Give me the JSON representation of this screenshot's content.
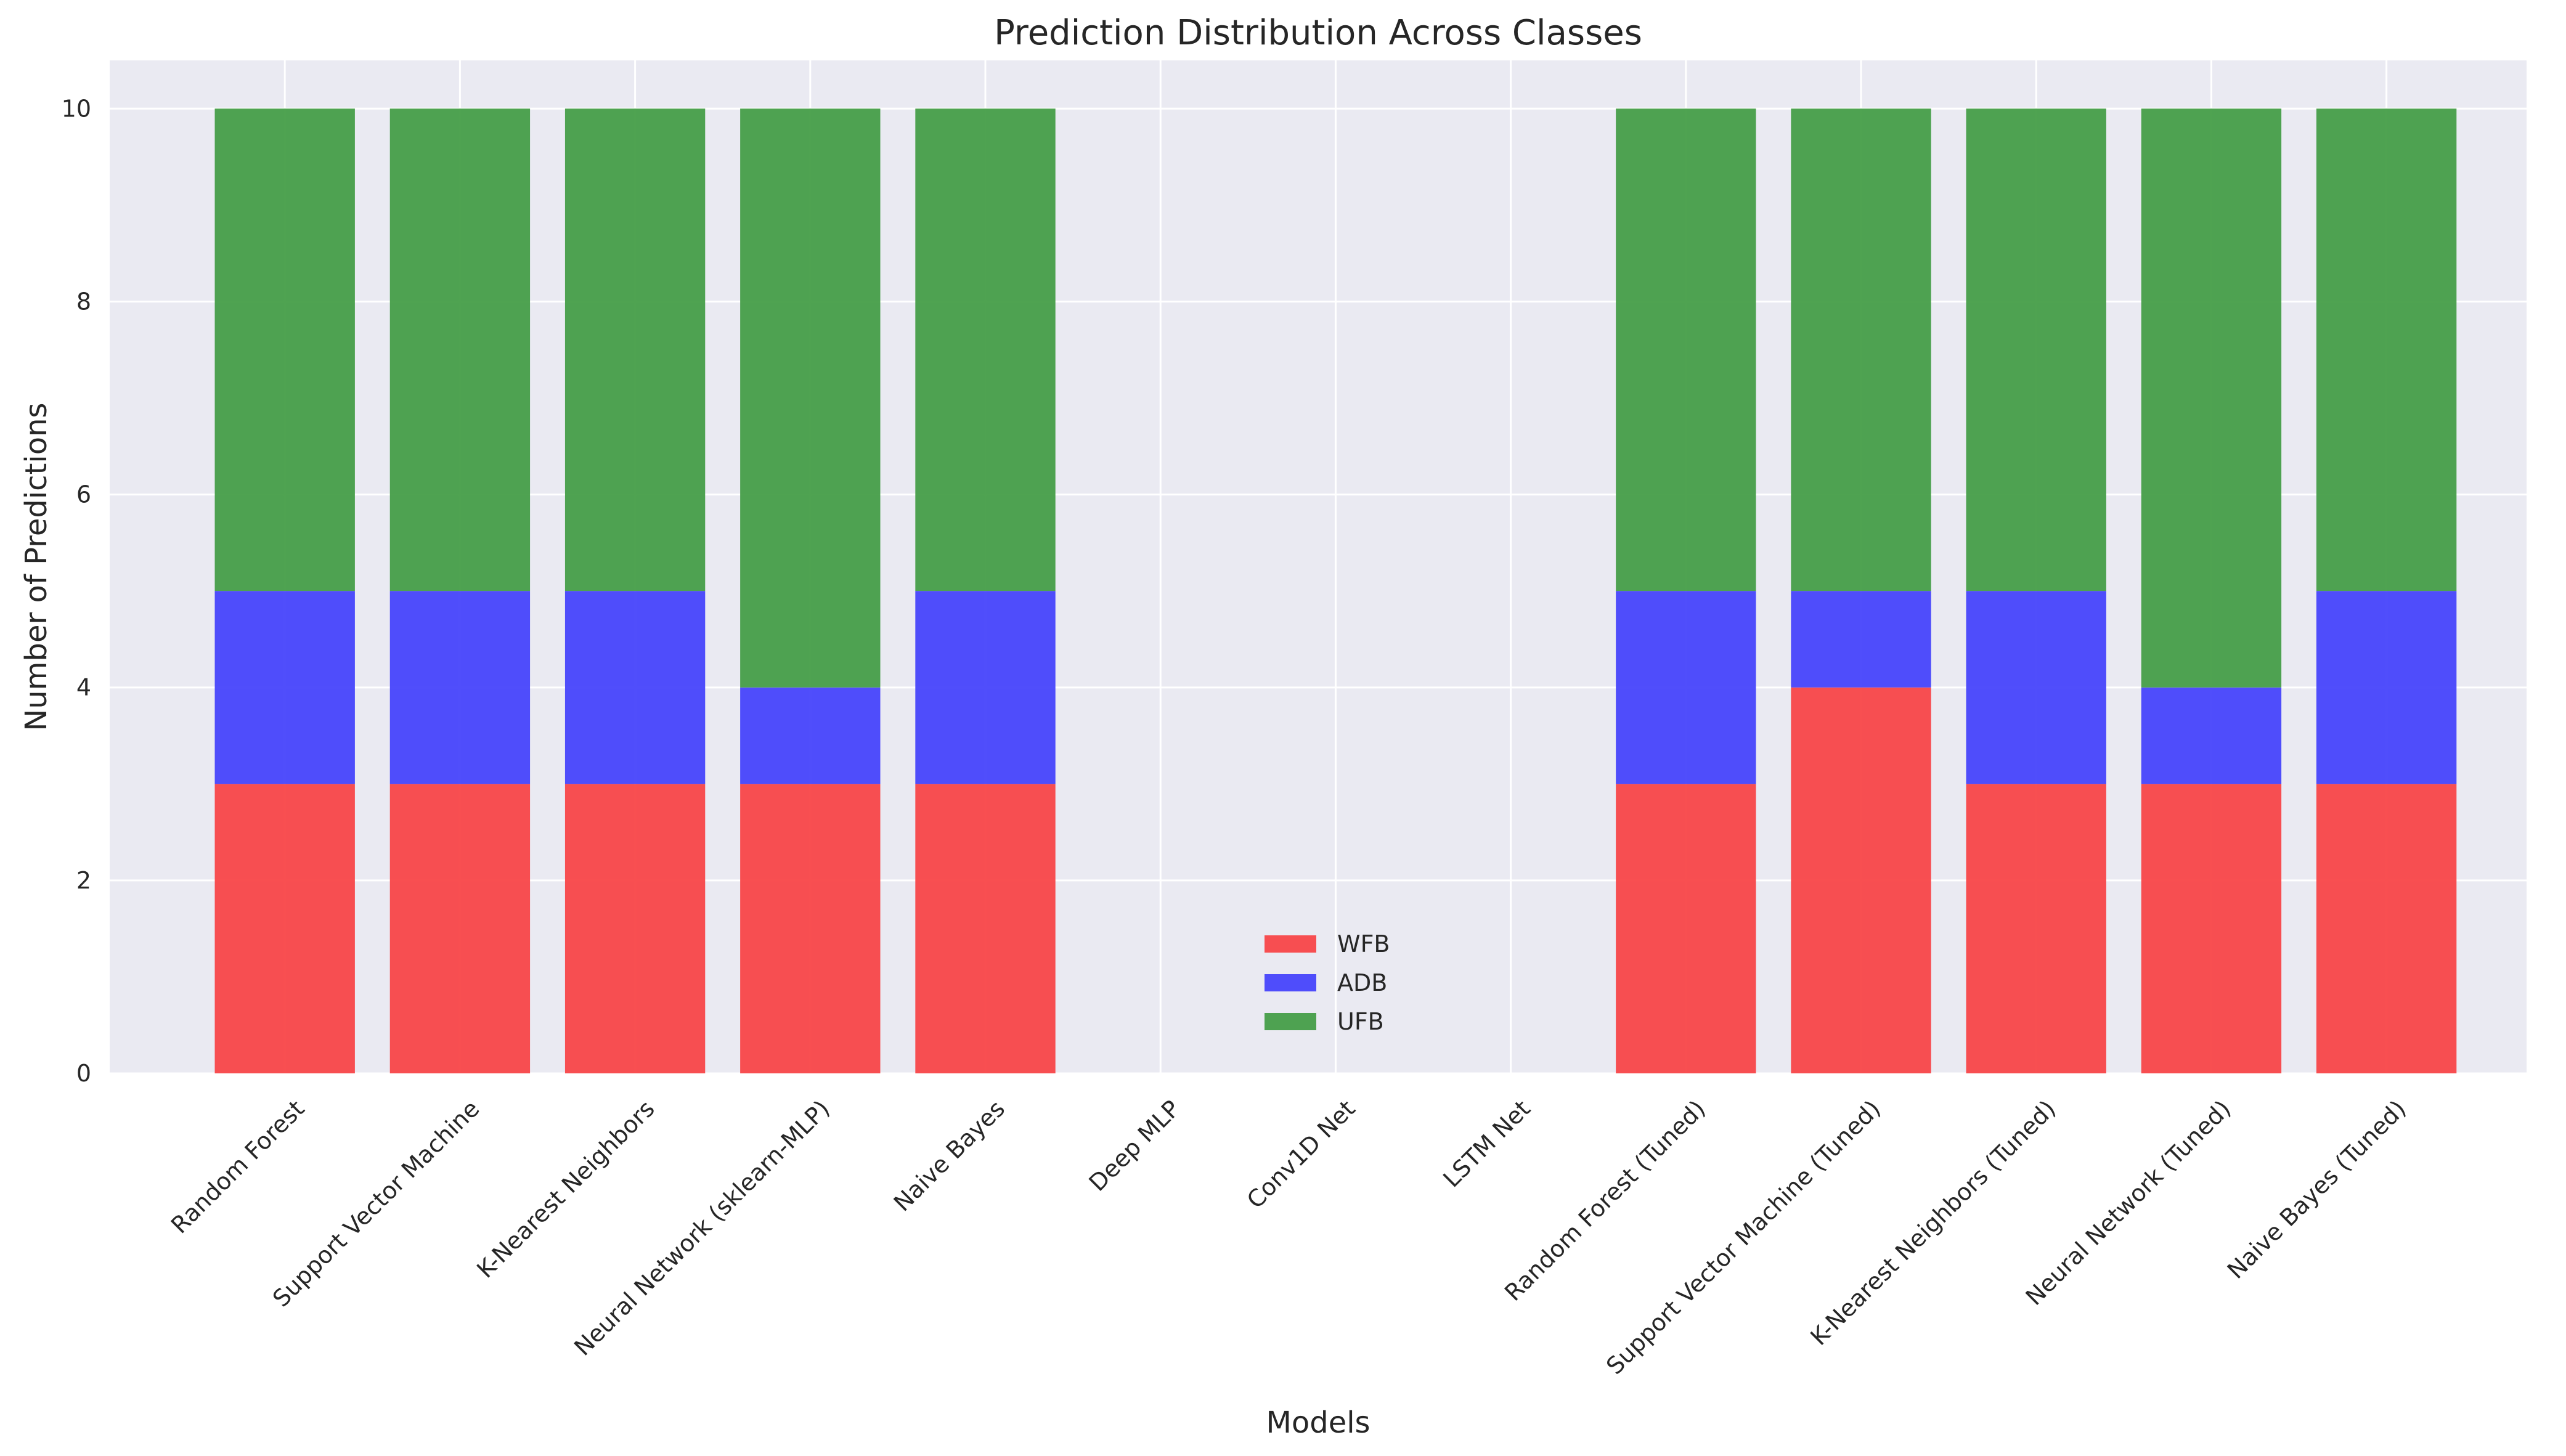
{
  "chart_data": {
    "type": "bar",
    "stacked": true,
    "title": "Prediction Distribution Across Classes",
    "xlabel": "Models",
    "ylabel": "Number of Predictions",
    "ylim": [
      0,
      10.5
    ],
    "yticks": [
      0,
      2,
      4,
      6,
      8,
      10
    ],
    "grid": true,
    "legend_position": "lower-center",
    "categories": [
      "Random Forest",
      "Support Vector Machine",
      "K-Nearest Neighbors",
      "Neural Network (sklearn-MLP)",
      "Naive Bayes",
      "Deep MLP",
      "Conv1D Net",
      "LSTM Net",
      "Random Forest (Tuned)",
      "Support Vector Machine (Tuned)",
      "K-Nearest Neighbors (Tuned)",
      "Neural Network (Tuned)",
      "Naive Bayes (Tuned)"
    ],
    "series": [
      {
        "name": "WFB",
        "color": "#f84648",
        "values": [
          3,
          3,
          3,
          3,
          3,
          0,
          0,
          0,
          3,
          4,
          3,
          3,
          3
        ]
      },
      {
        "name": "ADB",
        "color": "#4745fb",
        "values": [
          2,
          2,
          2,
          1,
          2,
          0,
          0,
          0,
          2,
          1,
          2,
          1,
          2
        ]
      },
      {
        "name": "UFB",
        "color": "#469e48",
        "values": [
          5,
          5,
          5,
          6,
          5,
          0,
          0,
          0,
          5,
          5,
          5,
          6,
          5
        ]
      }
    ]
  }
}
